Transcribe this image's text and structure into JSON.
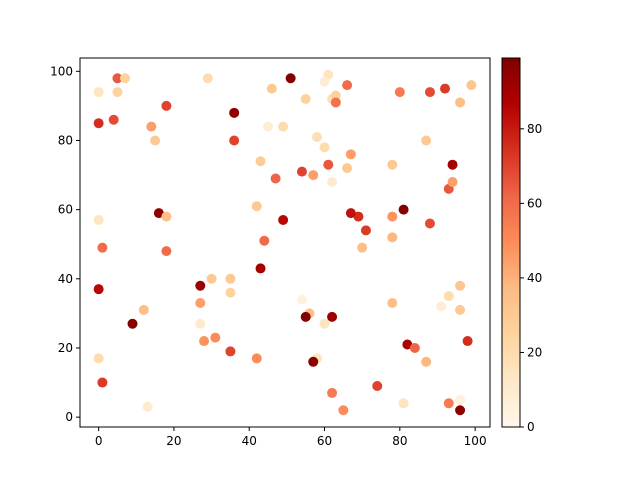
{
  "chart_data": {
    "type": "scatter",
    "x": [
      0,
      5,
      7,
      5,
      18,
      0,
      4,
      14,
      15,
      36,
      36,
      29,
      46,
      51,
      61,
      60,
      55,
      62,
      63,
      63,
      66,
      80,
      88,
      92,
      99,
      96,
      45,
      49,
      58,
      60,
      61,
      67,
      66,
      62,
      57,
      54,
      47,
      43,
      42,
      49,
      44,
      43,
      16,
      18,
      0,
      1,
      18,
      0,
      27,
      30,
      35,
      35,
      27,
      27,
      12,
      9,
      28,
      31,
      35,
      42,
      0,
      1,
      13,
      54,
      56,
      55,
      60,
      62,
      58,
      57,
      62,
      65,
      74,
      81,
      78,
      82,
      84,
      87,
      88,
      81,
      78,
      78,
      70,
      71,
      69,
      67,
      78,
      87,
      94,
      93,
      94,
      96,
      93,
      91,
      96,
      98,
      93,
      96,
      96
    ],
    "y": [
      94,
      98,
      98,
      94,
      90,
      85,
      86,
      84,
      80,
      88,
      80,
      98,
      95,
      98,
      99,
      97,
      92,
      92,
      93,
      91,
      96,
      94,
      94,
      95,
      96,
      91,
      84,
      84,
      81,
      78,
      73,
      76,
      72,
      68,
      70,
      71,
      69,
      74,
      61,
      57,
      51,
      43,
      59,
      58,
      57,
      49,
      48,
      37,
      38,
      40,
      40,
      36,
      33,
      27,
      31,
      27,
      22,
      23,
      19,
      17,
      17,
      10,
      3,
      34,
      30,
      29,
      27,
      29,
      17,
      16,
      7,
      2,
      9,
      4,
      33,
      21,
      20,
      16,
      56,
      60,
      58,
      52,
      49,
      54,
      58,
      59,
      73,
      80,
      73,
      66,
      68,
      38,
      35,
      32,
      31,
      22,
      4,
      2,
      5
    ],
    "c": [
      15,
      65,
      25,
      25,
      70,
      75,
      68,
      45,
      30,
      95,
      70,
      20,
      30,
      98,
      15,
      8,
      25,
      18,
      25,
      58,
      60,
      55,
      68,
      72,
      32,
      35,
      8,
      20,
      18,
      20,
      65,
      45,
      30,
      10,
      45,
      70,
      62,
      28,
      30,
      85,
      60,
      90,
      95,
      35,
      15,
      60,
      60,
      85,
      92,
      30,
      30,
      25,
      45,
      10,
      35,
      97,
      48,
      50,
      70,
      50,
      20,
      72,
      10,
      5,
      35,
      98,
      15,
      92,
      15,
      96,
      55,
      50,
      70,
      15,
      35,
      88,
      62,
      38,
      68,
      97,
      48,
      38,
      35,
      72,
      75,
      82,
      30,
      30,
      90,
      65,
      45,
      32,
      20,
      8,
      30,
      75,
      55,
      95,
      5
    ],
    "colormap": "OrRd",
    "clim": [
      0,
      99
    ],
    "xlim": [
      -4.95,
      103.95
    ],
    "ylim": [
      -2.85,
      103.85
    ],
    "xticks": [
      0,
      20,
      40,
      60,
      80,
      100
    ],
    "yticks": [
      0,
      20,
      40,
      60,
      80,
      100
    ],
    "cticks": [
      0,
      20,
      40,
      60,
      80
    ]
  }
}
